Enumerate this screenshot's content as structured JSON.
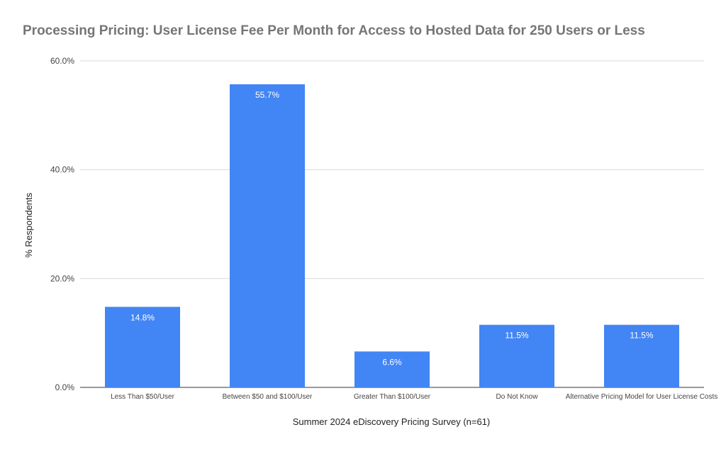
{
  "chart_data": {
    "type": "bar",
    "title": "Processing Pricing: User License Fee Per Month for Access to Hosted Data for 250 Users or Less",
    "xlabel": "Summer 2024 eDiscovery Pricing Survey (n=61)",
    "ylabel": "% Respondents",
    "categories": [
      "Less Than $50/User",
      "Between $50 and $100/User",
      "Greater Than $100/User",
      "Do Not Know",
      "Alternative Pricing Model for User License Costs"
    ],
    "values": [
      14.8,
      55.7,
      6.6,
      11.5,
      11.5
    ],
    "data_labels": [
      "14.8%",
      "55.7%",
      "6.6%",
      "11.5%",
      "11.5%"
    ],
    "ylim": [
      0,
      60
    ],
    "yticks": [
      0,
      20,
      40,
      60
    ],
    "ytick_labels": [
      "0.0%",
      "20.0%",
      "40.0%",
      "60.0%"
    ],
    "grid": true,
    "bar_color": "#4285f4"
  }
}
